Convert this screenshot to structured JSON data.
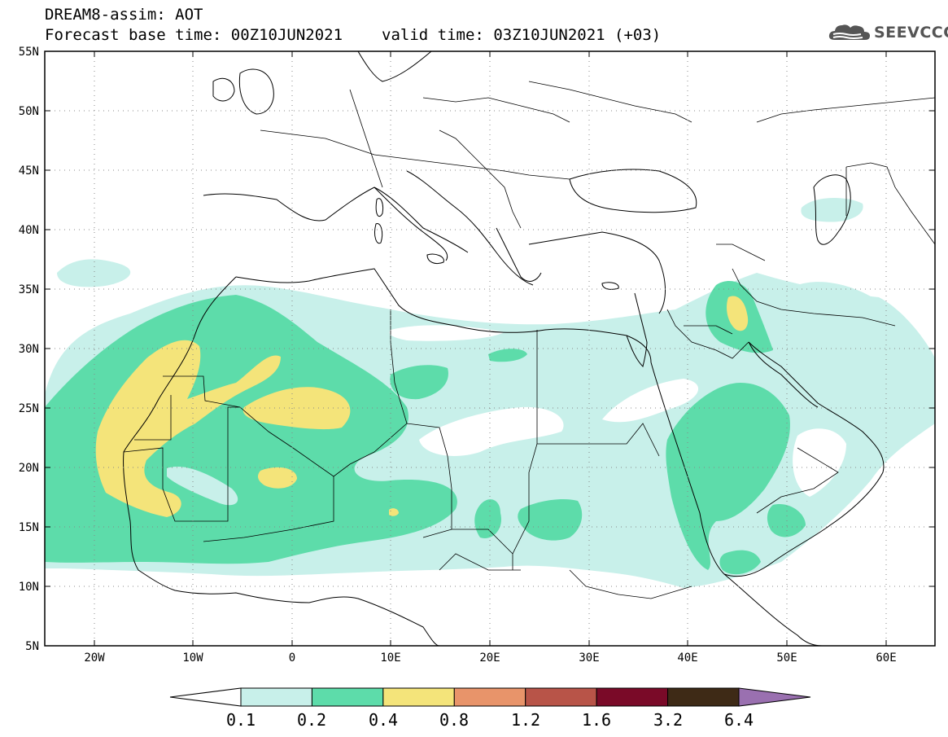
{
  "header": {
    "title": "DREAM8-assim: AOT",
    "base_time_label": "Forecast base time: 00Z10JUN2021",
    "valid_time_label": "valid time: 03Z10JUN2021 (+03)"
  },
  "logo": {
    "text": "SEEVCCC",
    "icon": "cloud-icon"
  },
  "map": {
    "lon_range": [
      -25,
      65
    ],
    "lat_range": [
      5,
      55
    ],
    "lat_ticks": [
      "55N",
      "50N",
      "45N",
      "40N",
      "35N",
      "30N",
      "25N",
      "20N",
      "15N",
      "10N",
      "5N"
    ],
    "lon_ticks": [
      "20W",
      "10W",
      "0",
      "10E",
      "20E",
      "30E",
      "40E",
      "50E",
      "60E"
    ],
    "grid": "dotted"
  },
  "colorbar": {
    "labels": [
      "0.1",
      "0.2",
      "0.4",
      "0.8",
      "1.2",
      "1.6",
      "3.2",
      "6.4"
    ],
    "colors": [
      "#c8f0ea",
      "#5ddcaa",
      "#f4e47a",
      "#e8946a",
      "#b85448",
      "#7a0a28",
      "#3e2a16",
      "#9a70b0"
    ]
  }
}
